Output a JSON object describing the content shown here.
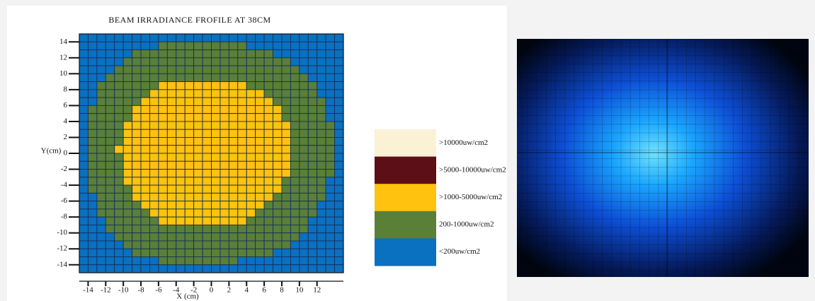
{
  "chart_data": {
    "type": "heatmap",
    "title": "BEAM IRRADIANCE FROFILE AT 38CM",
    "xlabel": "X (cm)",
    "ylabel": "Y(cm)",
    "xlim": [
      -15,
      15
    ],
    "ylim": [
      -15,
      15
    ],
    "xticks": [
      -14,
      -12,
      -10,
      -8,
      -6,
      -4,
      -2,
      0,
      2,
      4,
      6,
      8,
      10,
      12
    ],
    "yticks": [
      -14,
      -12,
      -10,
      -8,
      -6,
      -4,
      -2,
      0,
      2,
      4,
      6,
      8,
      10,
      12,
      14
    ],
    "levels": [
      {
        "label": ">10000uw/cm2",
        "color": "#fbf1d4"
      },
      {
        "label": ">5000-10000uw/cm2",
        "color": "#5c0f16"
      },
      {
        "label": ">1000-5000uw/cm2",
        "color": "#ffc20e"
      },
      {
        "label": "200-1000uw/cm2",
        "color": "#5a7f37"
      },
      {
        "label": "<200uw/cm2",
        "color": "#0a70c0"
      }
    ],
    "z": [
      [
        4,
        4,
        4,
        4,
        4,
        4,
        4,
        4,
        4,
        4,
        4,
        4,
        4,
        4,
        4,
        4,
        4,
        4,
        4,
        4,
        4,
        4,
        4,
        4,
        4,
        4,
        4,
        4,
        4,
        4
      ],
      [
        4,
        4,
        4,
        4,
        4,
        4,
        4,
        4,
        4,
        3,
        3,
        3,
        3,
        3,
        3,
        3,
        3,
        3,
        3,
        4,
        4,
        4,
        4,
        4,
        4,
        4,
        4,
        4,
        4,
        4
      ],
      [
        4,
        4,
        4,
        4,
        4,
        4,
        3,
        3,
        3,
        3,
        3,
        3,
        3,
        3,
        3,
        3,
        3,
        3,
        3,
        3,
        3,
        3,
        4,
        4,
        4,
        4,
        4,
        4,
        4,
        4
      ],
      [
        4,
        4,
        4,
        4,
        4,
        3,
        3,
        3,
        3,
        3,
        3,
        3,
        3,
        3,
        3,
        3,
        3,
        3,
        3,
        3,
        3,
        3,
        3,
        3,
        4,
        4,
        4,
        4,
        4,
        4
      ],
      [
        4,
        4,
        4,
        4,
        3,
        3,
        3,
        3,
        3,
        3,
        3,
        3,
        3,
        3,
        3,
        3,
        3,
        3,
        3,
        3,
        3,
        3,
        3,
        3,
        3,
        4,
        4,
        4,
        4,
        4
      ],
      [
        4,
        4,
        4,
        3,
        3,
        3,
        3,
        3,
        3,
        3,
        3,
        3,
        3,
        3,
        3,
        3,
        3,
        3,
        3,
        3,
        3,
        3,
        3,
        3,
        3,
        3,
        4,
        4,
        4,
        4
      ],
      [
        4,
        4,
        3,
        3,
        3,
        3,
        3,
        3,
        3,
        2,
        2,
        2,
        2,
        2,
        2,
        2,
        2,
        2,
        2,
        3,
        3,
        3,
        3,
        3,
        3,
        3,
        3,
        4,
        4,
        4
      ],
      [
        4,
        4,
        3,
        3,
        3,
        3,
        3,
        3,
        2,
        2,
        2,
        2,
        2,
        2,
        2,
        2,
        2,
        2,
        2,
        2,
        2,
        3,
        3,
        3,
        3,
        3,
        3,
        4,
        4,
        4
      ],
      [
        4,
        4,
        3,
        3,
        3,
        3,
        3,
        2,
        2,
        2,
        2,
        2,
        2,
        2,
        2,
        2,
        2,
        2,
        2,
        2,
        2,
        2,
        3,
        3,
        3,
        3,
        3,
        3,
        4,
        4
      ],
      [
        4,
        3,
        3,
        3,
        3,
        3,
        2,
        2,
        2,
        2,
        2,
        2,
        2,
        2,
        2,
        2,
        2,
        2,
        2,
        2,
        2,
        2,
        2,
        3,
        3,
        3,
        3,
        3,
        4,
        4
      ],
      [
        4,
        3,
        3,
        3,
        3,
        3,
        2,
        2,
        2,
        2,
        2,
        2,
        2,
        2,
        2,
        2,
        2,
        2,
        2,
        2,
        2,
        2,
        2,
        3,
        3,
        3,
        3,
        3,
        4,
        4
      ],
      [
        4,
        3,
        3,
        3,
        3,
        2,
        2,
        2,
        2,
        2,
        2,
        2,
        2,
        2,
        2,
        2,
        2,
        2,
        2,
        2,
        2,
        2,
        2,
        2,
        3,
        3,
        3,
        3,
        3,
        4
      ],
      [
        4,
        3,
        3,
        3,
        3,
        2,
        2,
        2,
        2,
        2,
        2,
        2,
        2,
        2,
        2,
        2,
        2,
        2,
        2,
        2,
        2,
        2,
        2,
        2,
        3,
        3,
        3,
        3,
        3,
        4
      ],
      [
        4,
        3,
        3,
        3,
        3,
        2,
        2,
        2,
        2,
        2,
        2,
        2,
        2,
        2,
        2,
        2,
        2,
        2,
        2,
        2,
        2,
        2,
        2,
        2,
        3,
        3,
        3,
        3,
        3,
        4
      ],
      [
        4,
        3,
        3,
        3,
        2,
        2,
        2,
        2,
        2,
        2,
        2,
        2,
        2,
        2,
        2,
        2,
        2,
        2,
        2,
        2,
        2,
        2,
        2,
        2,
        3,
        3,
        3,
        3,
        3,
        4
      ],
      [
        4,
        3,
        3,
        3,
        3,
        2,
        2,
        2,
        2,
        2,
        2,
        2,
        2,
        2,
        2,
        2,
        2,
        2,
        2,
        2,
        2,
        2,
        2,
        2,
        3,
        3,
        3,
        3,
        3,
        4
      ],
      [
        4,
        3,
        3,
        3,
        3,
        2,
        2,
        2,
        2,
        2,
        2,
        2,
        2,
        2,
        2,
        2,
        2,
        2,
        2,
        2,
        2,
        2,
        2,
        2,
        3,
        3,
        3,
        3,
        3,
        4
      ],
      [
        4,
        3,
        3,
        3,
        3,
        2,
        2,
        2,
        2,
        2,
        2,
        2,
        2,
        2,
        2,
        2,
        2,
        2,
        2,
        2,
        2,
        2,
        2,
        2,
        3,
        3,
        3,
        3,
        3,
        4
      ],
      [
        4,
        3,
        3,
        3,
        3,
        2,
        2,
        2,
        2,
        2,
        2,
        2,
        2,
        2,
        2,
        2,
        2,
        2,
        2,
        2,
        2,
        2,
        2,
        3,
        3,
        3,
        3,
        3,
        4,
        4
      ],
      [
        4,
        3,
        3,
        3,
        3,
        3,
        2,
        2,
        2,
        2,
        2,
        2,
        2,
        2,
        2,
        2,
        2,
        2,
        2,
        2,
        2,
        2,
        2,
        3,
        3,
        3,
        3,
        3,
        4,
        4
      ],
      [
        4,
        4,
        3,
        3,
        3,
        3,
        2,
        2,
        2,
        2,
        2,
        2,
        2,
        2,
        2,
        2,
        2,
        2,
        2,
        2,
        2,
        2,
        3,
        3,
        3,
        3,
        3,
        3,
        4,
        4
      ],
      [
        4,
        4,
        3,
        3,
        3,
        3,
        3,
        2,
        2,
        2,
        2,
        2,
        2,
        2,
        2,
        2,
        2,
        2,
        2,
        2,
        2,
        3,
        3,
        3,
        3,
        3,
        3,
        4,
        4,
        4
      ],
      [
        4,
        4,
        3,
        3,
        3,
        3,
        3,
        3,
        2,
        2,
        2,
        2,
        2,
        2,
        2,
        2,
        2,
        2,
        2,
        2,
        3,
        3,
        3,
        3,
        3,
        3,
        3,
        4,
        4,
        4
      ],
      [
        4,
        4,
        4,
        3,
        3,
        3,
        3,
        3,
        3,
        2,
        2,
        2,
        2,
        2,
        2,
        2,
        2,
        2,
        2,
        3,
        3,
        3,
        3,
        3,
        3,
        3,
        4,
        4,
        4,
        4
      ],
      [
        4,
        4,
        4,
        3,
        3,
        3,
        3,
        3,
        3,
        3,
        3,
        3,
        3,
        3,
        3,
        3,
        3,
        3,
        3,
        3,
        3,
        3,
        3,
        3,
        3,
        3,
        4,
        4,
        4,
        4
      ],
      [
        4,
        4,
        4,
        4,
        3,
        3,
        3,
        3,
        3,
        3,
        3,
        3,
        3,
        3,
        3,
        3,
        3,
        3,
        3,
        3,
        3,
        3,
        3,
        3,
        3,
        4,
        4,
        4,
        4,
        4
      ],
      [
        4,
        4,
        4,
        4,
        4,
        3,
        3,
        3,
        3,
        3,
        3,
        3,
        3,
        3,
        3,
        3,
        3,
        3,
        3,
        3,
        3,
        3,
        3,
        3,
        4,
        4,
        4,
        4,
        4,
        4
      ],
      [
        4,
        4,
        4,
        4,
        4,
        4,
        3,
        3,
        3,
        3,
        3,
        3,
        3,
        3,
        3,
        3,
        3,
        3,
        3,
        3,
        3,
        3,
        4,
        4,
        4,
        4,
        4,
        4,
        4,
        4
      ],
      [
        4,
        4,
        4,
        4,
        4,
        4,
        4,
        4,
        4,
        3,
        3,
        3,
        3,
        3,
        3,
        3,
        3,
        3,
        4,
        4,
        4,
        4,
        4,
        4,
        4,
        4,
        4,
        4,
        4,
        4
      ],
      [
        4,
        4,
        4,
        4,
        4,
        4,
        4,
        4,
        4,
        4,
        4,
        4,
        4,
        4,
        4,
        4,
        4,
        4,
        4,
        4,
        4,
        4,
        4,
        4,
        4,
        4,
        4,
        4,
        4,
        4
      ]
    ]
  }
}
